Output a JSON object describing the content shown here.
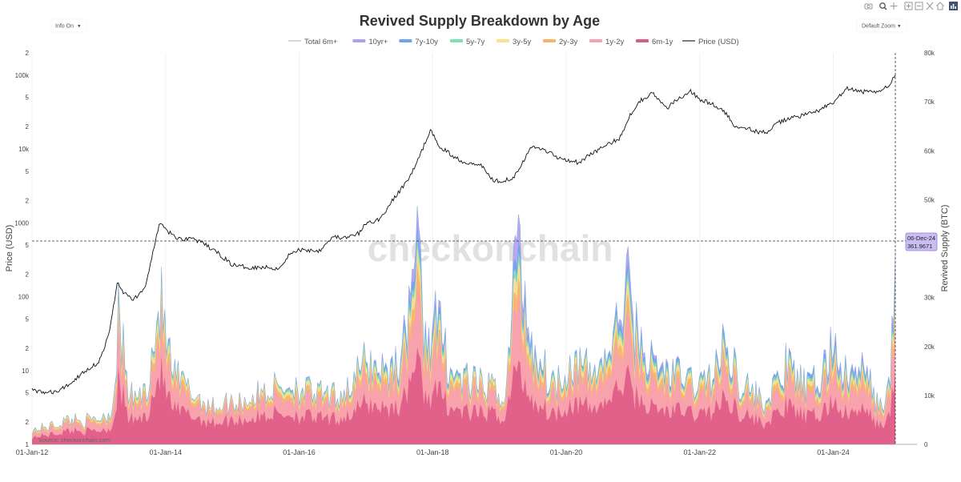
{
  "controls": {
    "info_toggle": "Info On",
    "zoom_select": "Default Zoom",
    "dropdown_glyph": "▾",
    "toolbar_icons": [
      "camera-icon",
      "zoom-icon",
      "pan-icon",
      "zoom-in-icon",
      "zoom-out-icon",
      "autoscale-icon",
      "home-icon",
      "logo-icon"
    ]
  },
  "watermark": "checkonchain",
  "source": "Source: checkonchain.com",
  "hover": {
    "date": "06-Dec-24",
    "value": "361.9671"
  },
  "chart_data": {
    "type": "area",
    "title": "Revived Supply Breakdown by Age",
    "ylabel_left": "Price (USD)",
    "ylabel_right": "Revived Supply (BTC)",
    "x_ticks": [
      "01-Jan-12",
      "01-Jan-14",
      "01-Jan-16",
      "01-Jan-18",
      "01-Jan-20",
      "01-Jan-22",
      "01-Jan-24"
    ],
    "x_range": [
      2012.0,
      2025.05
    ],
    "y_left": {
      "scale": "log",
      "range": [
        1,
        200000
      ],
      "tick_labels": [
        {
          "v": 1,
          "t": "1"
        },
        {
          "v": 2,
          "t": "2"
        },
        {
          "v": 5,
          "t": "5"
        },
        {
          "v": 10,
          "t": "10"
        },
        {
          "v": 20,
          "t": "2"
        },
        {
          "v": 50,
          "t": "5"
        },
        {
          "v": 100,
          "t": "100"
        },
        {
          "v": 200,
          "t": "2"
        },
        {
          "v": 500,
          "t": "5"
        },
        {
          "v": 1000,
          "t": "1000"
        },
        {
          "v": 2000,
          "t": "2"
        },
        {
          "v": 5000,
          "t": "5"
        },
        {
          "v": 10000,
          "t": "10k"
        },
        {
          "v": 20000,
          "t": "2"
        },
        {
          "v": 50000,
          "t": "5"
        },
        {
          "v": 100000,
          "t": "100k"
        },
        {
          "v": 200000,
          "t": "2"
        }
      ]
    },
    "y_right": {
      "range": [
        0,
        80000
      ],
      "tick_labels": [
        {
          "v": 0,
          "t": "0"
        },
        {
          "v": 10000,
          "t": "10k"
        },
        {
          "v": 20000,
          "t": "20k"
        },
        {
          "v": 30000,
          "t": "30k"
        },
        {
          "v": 40000,
          "t": "40k"
        },
        {
          "v": 50000,
          "t": "50k"
        },
        {
          "v": 60000,
          "t": "60k"
        },
        {
          "v": 70000,
          "t": "70k"
        },
        {
          "v": 80000,
          "t": "80k"
        }
      ]
    },
    "legend": [
      {
        "name": "Total 6m+",
        "color": "#bbbbbb",
        "kind": "line"
      },
      {
        "name": "10yr+",
        "color": "#b49cf0",
        "kind": "area"
      },
      {
        "name": "7y-10y",
        "color": "#6fa3ef",
        "kind": "area"
      },
      {
        "name": "5y-7y",
        "color": "#7fe0b8",
        "kind": "area"
      },
      {
        "name": "3y-5y",
        "color": "#fde08a",
        "kind": "area"
      },
      {
        "name": "2y-3y",
        "color": "#f8b36b",
        "kind": "area"
      },
      {
        "name": "1y-2y",
        "color": "#f6a0b4",
        "kind": "area"
      },
      {
        "name": "6m-1y",
        "color": "#de5a86",
        "kind": "area"
      },
      {
        "name": "Price (USD)",
        "color": "#222222",
        "kind": "line"
      }
    ],
    "price_series": {
      "x": [
        2012.0,
        2012.2,
        2012.4,
        2012.6,
        2012.8,
        2013.0,
        2013.15,
        2013.28,
        2013.35,
        2013.5,
        2013.7,
        2013.85,
        2013.92,
        2014.0,
        2014.2,
        2014.4,
        2014.6,
        2014.8,
        2015.0,
        2015.2,
        2015.5,
        2015.7,
        2015.85,
        2016.0,
        2016.3,
        2016.5,
        2016.7,
        2016.9,
        2017.0,
        2017.2,
        2017.4,
        2017.6,
        2017.75,
        2017.85,
        2017.96,
        2018.1,
        2018.3,
        2018.5,
        2018.7,
        2018.9,
        2019.0,
        2019.2,
        2019.4,
        2019.5,
        2019.7,
        2019.9,
        2020.0,
        2020.2,
        2020.4,
        2020.6,
        2020.8,
        2020.95,
        2021.1,
        2021.3,
        2021.5,
        2021.6,
        2021.85,
        2022.0,
        2022.2,
        2022.4,
        2022.5,
        2022.7,
        2022.9,
        2023.0,
        2023.2,
        2023.4,
        2023.6,
        2023.8,
        2024.0,
        2024.2,
        2024.4,
        2024.6,
        2024.8,
        2024.93
      ],
      "values": [
        5.5,
        5,
        5.2,
        7,
        10,
        13,
        30,
        160,
        120,
        90,
        130,
        600,
        1000,
        800,
        600,
        620,
        500,
        380,
        270,
        250,
        250,
        240,
        370,
        430,
        420,
        650,
        620,
        720,
        980,
        1100,
        2000,
        3500,
        6000,
        10000,
        18000,
        11000,
        8000,
        6500,
        6400,
        3800,
        3700,
        4000,
        8000,
        11000,
        9500,
        7500,
        7200,
        6500,
        9000,
        11000,
        14000,
        28000,
        45000,
        57000,
        35000,
        42000,
        62000,
        47000,
        40000,
        30000,
        21000,
        19500,
        16500,
        17000,
        23000,
        27000,
        29000,
        34000,
        42000,
        65000,
        60000,
        58000,
        68000,
        100000
      ]
    },
    "revived_supply": {
      "x": [
        2012.0,
        2012.3,
        2012.6,
        2012.9,
        2013.2,
        2013.3,
        2013.45,
        2013.7,
        2013.92,
        2014.1,
        2014.4,
        2014.7,
        2015.0,
        2015.3,
        2015.6,
        2015.9,
        2016.2,
        2016.5,
        2016.8,
        2017.0,
        2017.3,
        2017.55,
        2017.75,
        2017.9,
        2018.05,
        2018.3,
        2018.6,
        2018.9,
        2019.1,
        2019.25,
        2019.5,
        2019.8,
        2020.1,
        2020.4,
        2020.7,
        2020.9,
        2021.05,
        2021.3,
        2021.5,
        2021.8,
        2022.0,
        2022.2,
        2022.4,
        2022.6,
        2022.8,
        2023.0,
        2023.3,
        2023.6,
        2023.8,
        2024.0,
        2024.2,
        2024.45,
        2024.7,
        2024.85,
        2024.93
      ],
      "total_6m_plus": [
        3000,
        4000,
        5500,
        5000,
        7000,
        28000,
        10000,
        11000,
        31000,
        15000,
        11000,
        8000,
        9000,
        10000,
        12000,
        13000,
        11000,
        10000,
        13000,
        18000,
        16000,
        19000,
        45000,
        22000,
        27000,
        15000,
        13000,
        12000,
        10000,
        45000,
        21000,
        13000,
        18000,
        15000,
        21000,
        35000,
        24000,
        17000,
        16000,
        14000,
        13000,
        15000,
        22000,
        14000,
        11000,
        9000,
        17000,
        12000,
        14000,
        22000,
        14000,
        16000,
        8000,
        12000,
        40000
      ],
      "share_6m_1y": [
        0.5,
        0.55,
        0.55,
        0.55,
        0.5,
        0.48,
        0.52,
        0.52,
        0.5,
        0.5,
        0.55,
        0.58,
        0.58,
        0.55,
        0.55,
        0.5,
        0.52,
        0.52,
        0.5,
        0.5,
        0.48,
        0.45,
        0.4,
        0.45,
        0.42,
        0.5,
        0.5,
        0.55,
        0.55,
        0.35,
        0.45,
        0.5,
        0.5,
        0.5,
        0.48,
        0.4,
        0.42,
        0.45,
        0.45,
        0.5,
        0.5,
        0.48,
        0.45,
        0.5,
        0.5,
        0.5,
        0.48,
        0.48,
        0.45,
        0.42,
        0.45,
        0.45,
        0.5,
        0.48,
        0.38
      ]
    },
    "marker": {
      "date": "06-Dec-24",
      "x": 2024.93,
      "value_right": 361.9671
    }
  }
}
